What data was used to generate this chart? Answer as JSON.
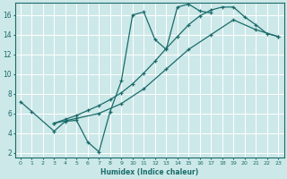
{
  "xlabel": "Humidex (Indice chaleur)",
  "background_color": "#cde8e8",
  "grid_color": "#ffffff",
  "line_color": "#1a6b6b",
  "xlim": [
    -0.5,
    23.5
  ],
  "ylim": [
    1.5,
    17.2
  ],
  "xticks": [
    0,
    1,
    2,
    3,
    4,
    5,
    6,
    7,
    8,
    9,
    10,
    11,
    12,
    13,
    14,
    15,
    16,
    17,
    18,
    19,
    20,
    21,
    22,
    23
  ],
  "yticks": [
    2,
    4,
    6,
    8,
    10,
    12,
    14,
    16
  ],
  "curve1_x": [
    0,
    1,
    3,
    4,
    5,
    6,
    7,
    8,
    9,
    10,
    11,
    12,
    13,
    14,
    15,
    16,
    17
  ],
  "curve1_y": [
    7.2,
    6.2,
    4.2,
    5.2,
    5.3,
    3.1,
    2.1,
    6.2,
    9.3,
    16.0,
    16.3,
    13.5,
    12.5,
    16.8,
    17.1,
    16.4,
    16.2
  ],
  "curve2_x": [
    3,
    4,
    5,
    6,
    7,
    8,
    9,
    10,
    11,
    12,
    13,
    14,
    15,
    16,
    17,
    18,
    19,
    20,
    21,
    22,
    23
  ],
  "curve2_y": [
    5.0,
    5.4,
    5.8,
    6.3,
    6.8,
    7.4,
    8.1,
    9.0,
    10.1,
    11.3,
    12.6,
    13.8,
    15.0,
    15.9,
    16.5,
    16.8,
    16.8,
    15.8,
    15.0,
    14.1,
    13.8
  ],
  "curve3_x": [
    3,
    5,
    7,
    9,
    11,
    13,
    15,
    17,
    19,
    21,
    23
  ],
  "curve3_y": [
    5.0,
    5.5,
    6.0,
    7.0,
    8.5,
    10.5,
    12.5,
    14.0,
    15.5,
    14.5,
    13.8
  ]
}
